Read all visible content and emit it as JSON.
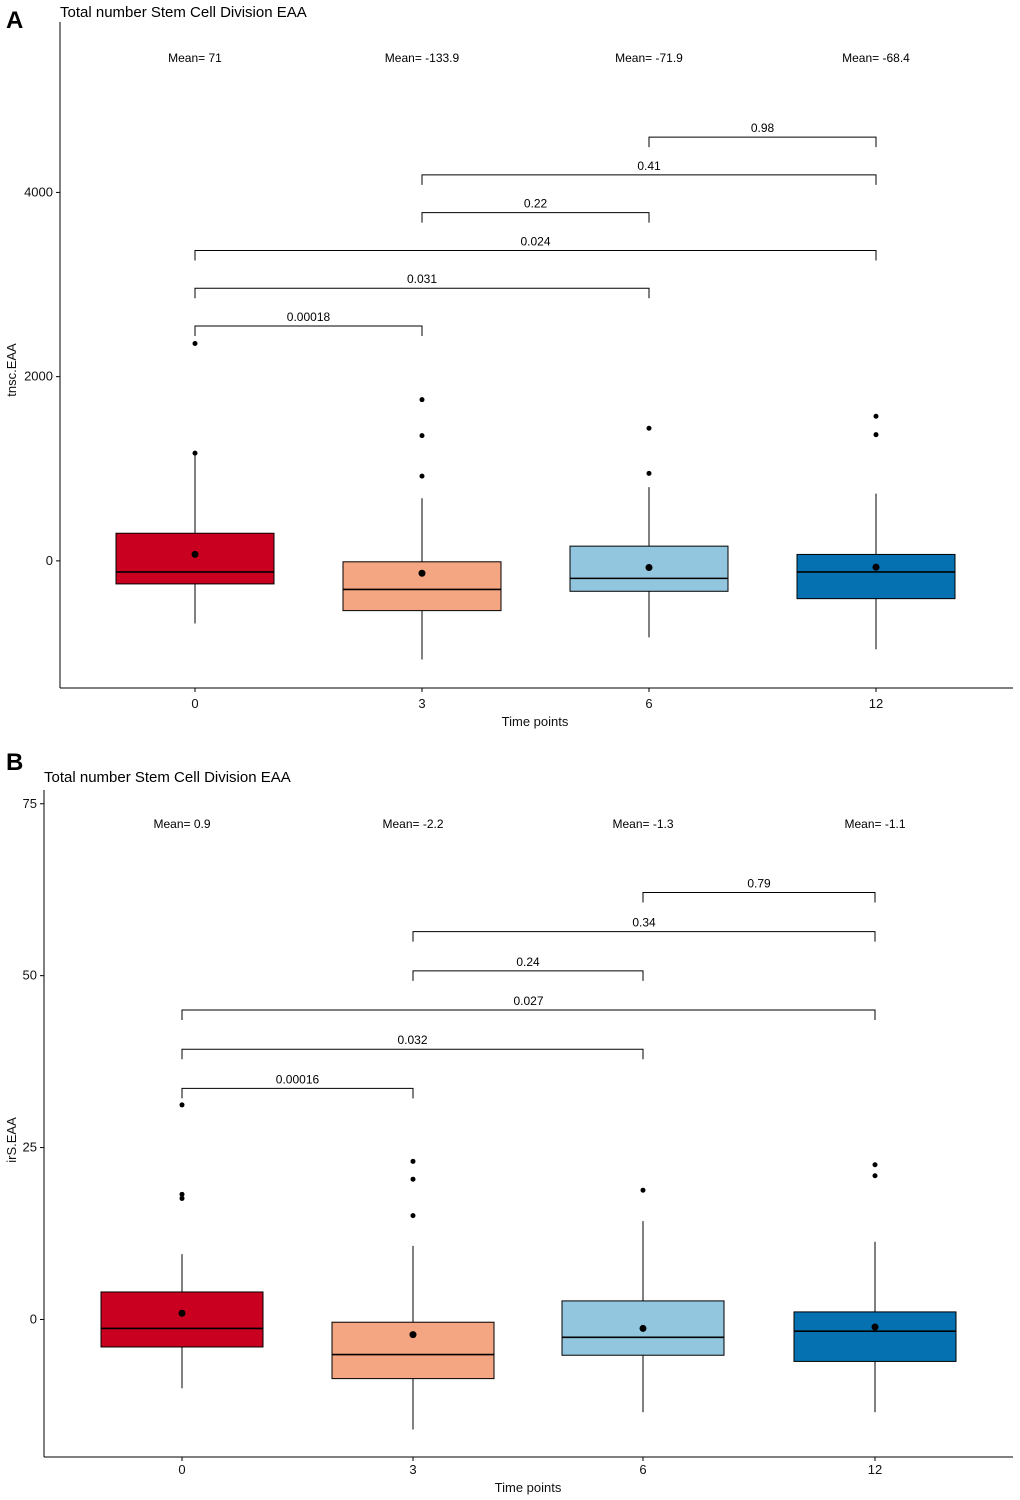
{
  "chart_data": [
    {
      "panel": "A",
      "type": "boxplot",
      "title": "Total number Stem Cell Division EAA",
      "xlabel": "Time points",
      "ylabel": "tnsc.EAA",
      "ylim": [
        -1380,
        5850
      ],
      "yticks": [
        0,
        2000,
        4000
      ],
      "ytick_labels": [
        "0",
        "2000",
        "4000"
      ],
      "categories": [
        "0",
        "3",
        "6",
        "12"
      ],
      "colors": [
        "#ca0020",
        "#f4a582",
        "#92c5de",
        "#0571b0"
      ],
      "boxes": [
        {
          "lower_whisker": -680,
          "q1": -250,
          "median": -120,
          "q3": 300,
          "upper_whisker": 1150,
          "mean": 71,
          "outliers": [
            1170,
            2360
          ]
        },
        {
          "lower_whisker": -1070,
          "q1": -540,
          "median": -310,
          "q3": -10,
          "upper_whisker": 680,
          "mean": -133.9,
          "outliers": [
            920,
            1360,
            1750
          ]
        },
        {
          "lower_whisker": -830,
          "q1": -330,
          "median": -190,
          "q3": 160,
          "upper_whisker": 800,
          "mean": -71.9,
          "outliers": [
            950,
            1440
          ]
        },
        {
          "lower_whisker": -960,
          "q1": -410,
          "median": -120,
          "q3": 70,
          "upper_whisker": 730,
          "mean": -68.4,
          "outliers": [
            1370,
            1570
          ]
        }
      ],
      "mean_labels": [
        "Mean= 71",
        "Mean= -133.9",
        "Mean= -71.9",
        "Mean= -68.4"
      ],
      "comparisons": [
        {
          "from": 0,
          "to": 1,
          "y": 2550,
          "label": "0.00018"
        },
        {
          "from": 0,
          "to": 2,
          "y": 2960,
          "label": "0.031"
        },
        {
          "from": 0,
          "to": 3,
          "y": 3370,
          "label": "0.024"
        },
        {
          "from": 1,
          "to": 2,
          "y": 3780,
          "label": "0.22"
        },
        {
          "from": 1,
          "to": 3,
          "y": 4190,
          "label": "0.41"
        },
        {
          "from": 2,
          "to": 3,
          "y": 4600,
          "label": "0.98"
        }
      ]
    },
    {
      "panel": "B",
      "type": "boxplot",
      "title": "Total number Stem Cell Division EAA",
      "xlabel": "Time points",
      "ylabel": "irS.EAA",
      "ylim": [
        -20,
        77
      ],
      "yticks": [
        0,
        25,
        50,
        75
      ],
      "ytick_labels": [
        "0",
        "25",
        "50",
        "75"
      ],
      "categories": [
        "0",
        "3",
        "6",
        "12"
      ],
      "colors": [
        "#ca0020",
        "#f4a582",
        "#92c5de",
        "#0571b0"
      ],
      "boxes": [
        {
          "lower_whisker": -10,
          "q1": -4,
          "median": -1.3,
          "q3": 4,
          "upper_whisker": 9.5,
          "mean": 0.9,
          "outliers": [
            17.6,
            18.2,
            31.2
          ]
        },
        {
          "lower_whisker": -16,
          "q1": -8.6,
          "median": -5.1,
          "q3": -0.4,
          "upper_whisker": 10.7,
          "mean": -2.2,
          "outliers": [
            15.1,
            20.4,
            23
          ]
        },
        {
          "lower_whisker": -13.5,
          "q1": -5.2,
          "median": -2.6,
          "q3": 2.7,
          "upper_whisker": 14.3,
          "mean": -1.3,
          "outliers": [
            18.8
          ]
        },
        {
          "lower_whisker": -13.5,
          "q1": -6.1,
          "median": -1.7,
          "q3": 1.1,
          "upper_whisker": 11.3,
          "mean": -1.1,
          "outliers": [
            20.9,
            22.5
          ]
        }
      ],
      "mean_labels": [
        "Mean= 0.9",
        "Mean= -2.2",
        "Mean= -1.3",
        "Mean= -1.1"
      ],
      "comparisons": [
        {
          "from": 0,
          "to": 1,
          "y": 33.6,
          "label": "0.00016"
        },
        {
          "from": 0,
          "to": 2,
          "y": 39.3,
          "label": "0.032"
        },
        {
          "from": 0,
          "to": 3,
          "y": 45,
          "label": "0.027"
        },
        {
          "from": 1,
          "to": 2,
          "y": 50.7,
          "label": "0.24"
        },
        {
          "from": 1,
          "to": 3,
          "y": 56.4,
          "label": "0.34"
        },
        {
          "from": 2,
          "to": 3,
          "y": 62.1,
          "label": "0.79"
        }
      ]
    }
  ]
}
